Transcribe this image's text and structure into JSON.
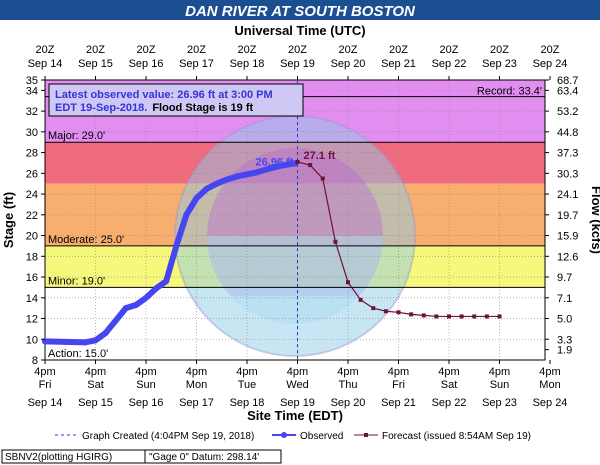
{
  "title": "DAN RIVER AT SOUTH BOSTON",
  "x_top_label": "Universal Time (UTC)",
  "x_bottom_label": "Site Time (EDT)",
  "y_left_label": "Stage (ft)",
  "y_right_label": "Flow (kcfs)",
  "info_line1": "Latest observed value: 26.96 ft at 3:00 PM",
  "info_line2a": "EDT 19-Sep-2018.",
  "info_line2b": "Flood Stage is 19 ft",
  "latest_label": "26.96 ft",
  "crest_label": "27.1 ft",
  "record_label": "Record: 33.4'",
  "categories": [
    {
      "name": "Major: 29.0'",
      "from": 29,
      "to": 35,
      "color": "#e28ef0"
    },
    {
      "name": "",
      "from": 25,
      "to": 29,
      "color": "#f26a7e"
    },
    {
      "name": "Moderate: 25.0'",
      "from": 19,
      "to": 25,
      "color": "#f7ae6e"
    },
    {
      "name": "Minor: 19.0'",
      "from": 15,
      "to": 19,
      "color": "#f6f87b"
    },
    {
      "name": "Action: 15.0'",
      "from": 8,
      "to": 15,
      "color": "#ffffff"
    }
  ],
  "legend": {
    "created": "Graph Created (4:04PM Sep 19, 2018)",
    "observed": "Observed",
    "forecast": "Forecast (issued 8:54AM Sep 19)"
  },
  "footer": {
    "box1": "SBNV2(plotting HGIRG)",
    "box2": "\"Gage 0\" Datum:  298.14'"
  },
  "colors": {
    "title_bg": "#1c4e92",
    "observed": "#4646f0",
    "forecast": "#6e1238",
    "created_line": "#3333cc",
    "record_line": "#000000"
  },
  "chart_data": {
    "type": "line",
    "x_unit": "days from 4pm EDT Sep 14, 2018",
    "xlim": [
      0,
      9
    ],
    "ylim": [
      8,
      35
    ],
    "y_ticks": [
      8,
      10,
      12,
      14,
      16,
      18,
      20,
      22,
      24,
      26,
      28,
      30,
      32,
      34,
      35
    ],
    "y_right_ticks": [
      {
        "stage": 9,
        "label": "1.9"
      },
      {
        "stage": 10,
        "label": "3.3"
      },
      {
        "stage": 12,
        "label": "5.0"
      },
      {
        "stage": 14,
        "label": "7.1"
      },
      {
        "stage": 16,
        "label": "9.7"
      },
      {
        "stage": 18,
        "label": "12.6"
      },
      {
        "stage": 20,
        "label": "15.9"
      },
      {
        "stage": 22,
        "label": "19.7"
      },
      {
        "stage": 24,
        "label": "24.1"
      },
      {
        "stage": 26,
        "label": "30.3"
      },
      {
        "stage": 28,
        "label": "37.3"
      },
      {
        "stage": 30,
        "label": "44.8"
      },
      {
        "stage": 32,
        "label": "53.2"
      },
      {
        "stage": 34,
        "label": "63.4"
      },
      {
        "stage": 35,
        "label": "68.7"
      }
    ],
    "x_top_ticks": [
      {
        "day": 0,
        "l1": "20Z",
        "l2": "Sep 14"
      },
      {
        "day": 1,
        "l1": "20Z",
        "l2": "Sep 15"
      },
      {
        "day": 2,
        "l1": "20Z",
        "l2": "Sep 16"
      },
      {
        "day": 3,
        "l1": "20Z",
        "l2": "Sep 17"
      },
      {
        "day": 4,
        "l1": "20Z",
        "l2": "Sep 18"
      },
      {
        "day": 5,
        "l1": "20Z",
        "l2": "Sep 19"
      },
      {
        "day": 6,
        "l1": "20Z",
        "l2": "Sep 20"
      },
      {
        "day": 7,
        "l1": "20Z",
        "l2": "Sep 21"
      },
      {
        "day": 8,
        "l1": "20Z",
        "l2": "Sep 22"
      },
      {
        "day": 9,
        "l1": "20Z",
        "l2": "Sep 23"
      },
      {
        "day": 10,
        "l1": "20Z",
        "l2": "Sep 24"
      }
    ],
    "x_bottom_ticks": [
      {
        "day": 0,
        "l1": "4pm",
        "l2": "Fri",
        "l3": "Sep 14"
      },
      {
        "day": 1,
        "l1": "4pm",
        "l2": "Sat",
        "l3": "Sep 15"
      },
      {
        "day": 2,
        "l1": "4pm",
        "l2": "Sun",
        "l3": "Sep 16"
      },
      {
        "day": 3,
        "l1": "4pm",
        "l2": "Mon",
        "l3": "Sep 17"
      },
      {
        "day": 4,
        "l1": "4pm",
        "l2": "Tue",
        "l3": "Sep 18"
      },
      {
        "day": 5,
        "l1": "4pm",
        "l2": "Wed",
        "l3": "Sep 19"
      },
      {
        "day": 6,
        "l1": "4pm",
        "l2": "Thu",
        "l3": "Sep 20"
      },
      {
        "day": 7,
        "l1": "4pm",
        "l2": "Fri",
        "l3": "Sep 21"
      },
      {
        "day": 8,
        "l1": "4pm",
        "l2": "Sat",
        "l3": "Sep 22"
      },
      {
        "day": 9,
        "l1": "4pm",
        "l2": "Sun",
        "l3": "Sep 23"
      },
      {
        "day": 10,
        "l1": "4pm",
        "l2": "Mon",
        "l3": "Sep 24"
      }
    ],
    "graph_created_day": 5,
    "record_stage": 33.4,
    "observed": {
      "x": [
        0,
        0.4,
        0.8,
        1.0,
        1.2,
        1.4,
        1.6,
        1.8,
        2.0,
        2.2,
        2.4,
        2.6,
        2.8,
        3.0,
        3.2,
        3.4,
        3.6,
        3.8,
        4.0,
        4.2,
        4.4,
        4.6,
        4.8,
        4.96
      ],
      "y": [
        9.8,
        9.75,
        9.7,
        9.9,
        10.6,
        11.8,
        13.0,
        13.3,
        14.0,
        14.9,
        15.6,
        19.0,
        22.0,
        23.6,
        24.5,
        25.0,
        25.4,
        25.7,
        25.9,
        26.1,
        26.4,
        26.65,
        26.85,
        26.96
      ]
    },
    "forecast": {
      "x": [
        5.0,
        5.25,
        5.5,
        5.75,
        6.0,
        6.25,
        6.5,
        6.75,
        7.0,
        7.25,
        7.5,
        7.75,
        8.0,
        8.25,
        8.5,
        8.75,
        9.0
      ],
      "y": [
        27.1,
        26.8,
        25.5,
        19.4,
        15.5,
        13.8,
        13.0,
        12.7,
        12.6,
        12.4,
        12.3,
        12.2,
        12.2,
        12.2,
        12.2,
        12.2,
        12.2
      ]
    }
  }
}
